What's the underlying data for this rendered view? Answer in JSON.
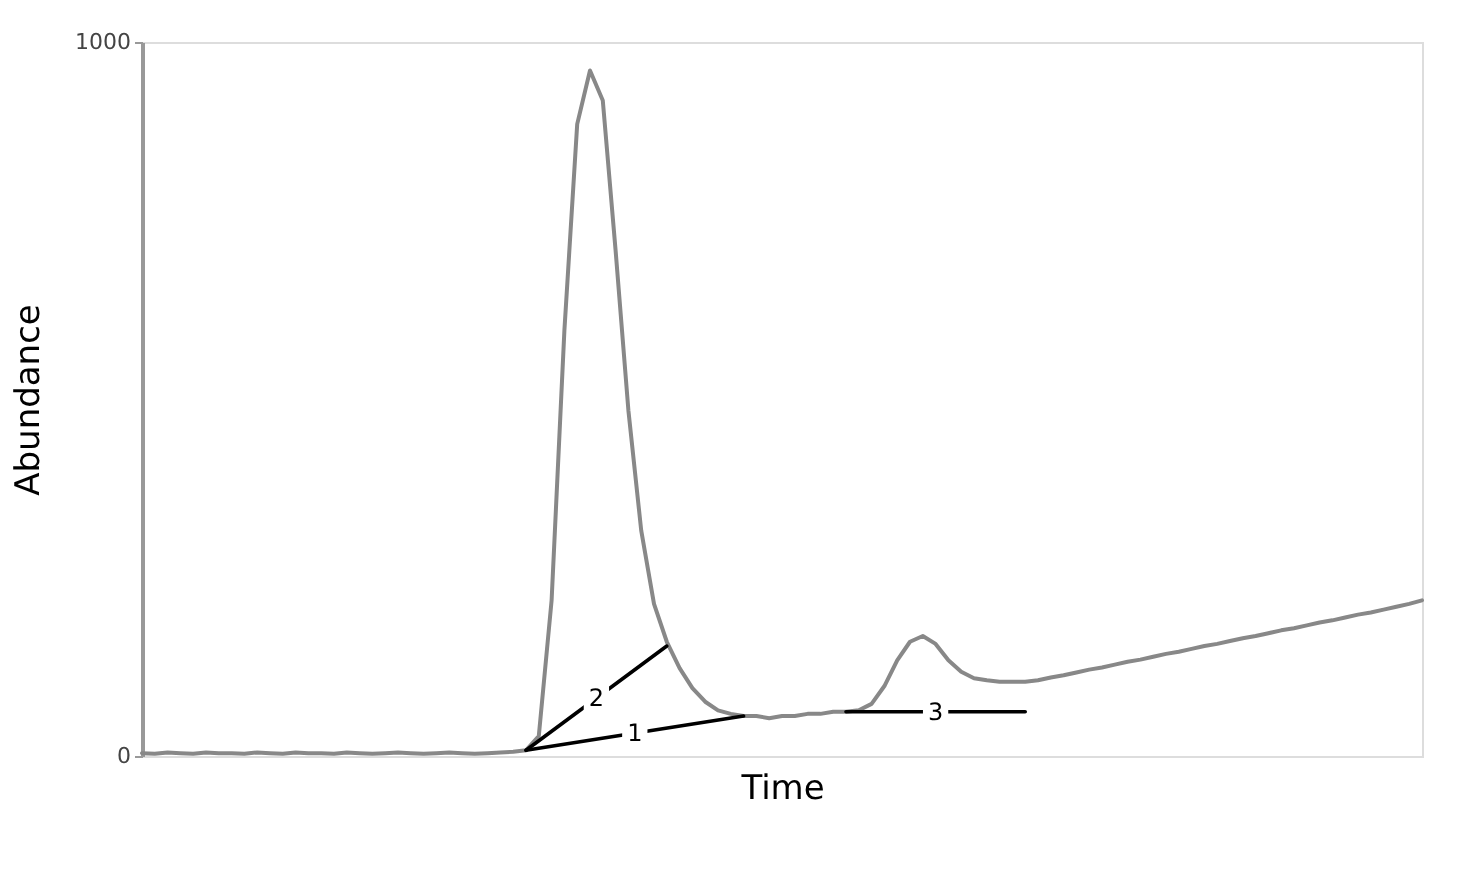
{
  "chart_data": {
    "type": "line",
    "xlabel": "Time",
    "ylabel": "Abundance",
    "categories": [
      null,
      null,
      null,
      null,
      null,
      null,
      null,
      null,
      null,
      null,
      null,
      null,
      null,
      null,
      null,
      null,
      null,
      null,
      null,
      null,
      null,
      null,
      null,
      null,
      null,
      null,
      null,
      null,
      null,
      null,
      null,
      null,
      null,
      null,
      null,
      null,
      null,
      null,
      null,
      null,
      null,
      null,
      null,
      null,
      null,
      null,
      null,
      null,
      null,
      null,
      null,
      null,
      null,
      null,
      null,
      null,
      null,
      null,
      null,
      null,
      null,
      null,
      null,
      null,
      null,
      null,
      null,
      null,
      null,
      null,
      null,
      null,
      null,
      null,
      null,
      null,
      null,
      null,
      null,
      null,
      null,
      null,
      null,
      null,
      null,
      null,
      null,
      null,
      null,
      null,
      null,
      null,
      null,
      null,
      null,
      null,
      null,
      null,
      null,
      null,
      null
    ],
    "series": [
      {
        "color": "#888888",
        "values": [
          4,
          3,
          5,
          4,
          3,
          5,
          4,
          4,
          3,
          5,
          4,
          3,
          5,
          4,
          4,
          3,
          5,
          4,
          3,
          4,
          5,
          4,
          3,
          4,
          5,
          4,
          3,
          4,
          5,
          6,
          8,
          28,
          218,
          596,
          885,
          960,
          918,
          708,
          484,
          316,
          213,
          160,
          123,
          95,
          76,
          64,
          59,
          56,
          56,
          53,
          56,
          56,
          59,
          59,
          62,
          62,
          64,
          73,
          98,
          134,
          160,
          168,
          157,
          134,
          118,
          109,
          106,
          104,
          104,
          104,
          106,
          110,
          113,
          117,
          121,
          124,
          128,
          132,
          135,
          139,
          143,
          146,
          150,
          154,
          157,
          161,
          165,
          168,
          172,
          176,
          179,
          183,
          187,
          190,
          194,
          198,
          201,
          205,
          209,
          213,
          218
        ]
      },
      {
        "name": "1",
        "color": "#000000",
        "values": [
          null,
          null,
          null,
          null,
          null,
          null,
          null,
          null,
          null,
          null,
          null,
          null,
          null,
          null,
          null,
          null,
          null,
          null,
          null,
          null,
          null,
          null,
          null,
          null,
          null,
          null,
          null,
          null,
          null,
          null,
          8,
          null,
          null,
          null,
          null,
          null,
          null,
          null,
          null,
          null,
          null,
          null,
          null,
          null,
          null,
          null,
          null,
          56,
          null,
          null,
          null,
          null,
          null,
          null,
          null,
          null,
          null,
          null,
          null,
          null,
          null,
          null,
          null,
          null,
          null,
          null,
          null,
          null,
          null,
          null,
          null,
          null,
          null,
          null,
          null,
          null,
          null,
          null,
          null,
          null,
          null,
          null,
          null,
          null,
          null,
          null,
          null,
          null,
          null,
          null,
          null,
          null,
          null,
          null,
          null,
          null,
          null,
          null,
          null,
          null,
          null
        ]
      },
      {
        "name": "2",
        "color": "#000000",
        "values": [
          null,
          null,
          null,
          null,
          null,
          null,
          null,
          null,
          null,
          null,
          null,
          null,
          null,
          null,
          null,
          null,
          null,
          null,
          null,
          null,
          null,
          null,
          null,
          null,
          null,
          null,
          null,
          null,
          null,
          null,
          8,
          null,
          null,
          null,
          null,
          null,
          null,
          null,
          null,
          null,
          null,
          154,
          null,
          null,
          null,
          null,
          null,
          null,
          null,
          null,
          null,
          null,
          null,
          null,
          null,
          null,
          null,
          null,
          null,
          null,
          null,
          null,
          null,
          null,
          null,
          null,
          null,
          null,
          null,
          null,
          null,
          null,
          null,
          null,
          null,
          null,
          null,
          null,
          null,
          null,
          null,
          null,
          null,
          null,
          null,
          null,
          null,
          null,
          null,
          null,
          null,
          null,
          null,
          null,
          null,
          null,
          null,
          null,
          null,
          null,
          null
        ]
      },
      {
        "name": "3",
        "color": "#000000",
        "values": [
          null,
          null,
          null,
          null,
          null,
          null,
          null,
          null,
          null,
          null,
          null,
          null,
          null,
          null,
          null,
          null,
          null,
          null,
          null,
          null,
          null,
          null,
          null,
          null,
          null,
          null,
          null,
          null,
          null,
          null,
          null,
          null,
          null,
          null,
          null,
          null,
          null,
          null,
          null,
          null,
          null,
          null,
          null,
          null,
          null,
          null,
          null,
          null,
          null,
          null,
          null,
          null,
          null,
          null,
          null,
          62,
          null,
          null,
          null,
          null,
          null,
          null,
          null,
          null,
          null,
          null,
          null,
          null,
          null,
          62,
          null,
          null,
          null,
          null,
          null,
          null,
          null,
          null,
          null,
          null,
          null,
          null,
          null,
          null,
          null,
          null,
          null,
          null,
          null,
          null,
          null,
          null,
          null,
          null,
          null,
          null,
          null,
          null,
          null,
          null,
          null
        ]
      }
    ],
    "ylim": [
      0,
      1000
    ],
    "yticks": [
      0,
      1000
    ],
    "grid": false,
    "tick_labels": "y"
  }
}
